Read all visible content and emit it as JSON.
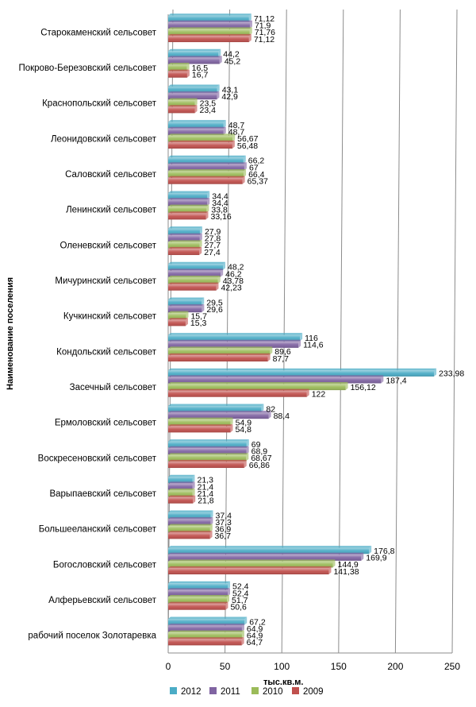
{
  "chart_data": {
    "type": "bar",
    "orientation": "horizontal",
    "title": "",
    "xlabel": "тыс.кв.м.",
    "ylabel": "Наименование поселения",
    "xlim": [
      0,
      250
    ],
    "x_ticks": [
      "0",
      "50",
      "100",
      "150",
      "200",
      "250"
    ],
    "grid": "vertical",
    "legend_position": "bottom",
    "categories": [
      "Старокаменский сельсовет",
      "Покрово-Березовский сельсовет",
      "Краснопольский сельсовет",
      "Леонидовский сельсовет",
      "Саловский сельсовет",
      "Ленинский сельсовет",
      "Оленевский сельсовет",
      "Мичуринский сельсовет",
      "Кучкинский сельсовет",
      "Кондольский сельсовет",
      "Засечный сельсовет",
      "Ермоловский сельсовет",
      "Воскресеновский сельсовет",
      "Варыпаевский сельсовет",
      "Большееланский сельсовет",
      "Богословский сельсовет",
      "Алферьевский сельсовет",
      "рабочий поселок Золотаревка"
    ],
    "series": [
      {
        "name": "2012",
        "color": "#4bacc6",
        "values": [
          71.12,
          44.2,
          43.1,
          48.7,
          66.2,
          34.4,
          27.9,
          48.2,
          29.5,
          116,
          233.98,
          82,
          69,
          21.3,
          37.4,
          176.8,
          52.4,
          67.2
        ],
        "labels": [
          "71,12",
          "44,2",
          "43,1",
          "48,7",
          "66,2",
          "34,4",
          "27,9",
          "48,2",
          "29,5",
          "116",
          "233,98",
          "82",
          "69",
          "21,3",
          "37,4",
          "176,8",
          "52,4",
          "67,2"
        ]
      },
      {
        "name": "2011",
        "color": "#8064a2",
        "values": [
          71.9,
          45.2,
          42.9,
          48.7,
          67,
          34.4,
          27.8,
          46.2,
          29.6,
          114.6,
          187.4,
          88.4,
          68.9,
          21.4,
          37.3,
          169.9,
          52.4,
          64.9
        ],
        "labels": [
          "71,9",
          "45,2",
          "42,9",
          "48,7",
          "67",
          "34,4",
          "27,8",
          "46,2",
          "29,6",
          "114,6",
          "187,4",
          "88,4",
          "68,9",
          "21,4",
          "37,3",
          "169,9",
          "52,4",
          "64,9"
        ]
      },
      {
        "name": "2010",
        "color": "#9bbb59",
        "values": [
          71.76,
          16.5,
          23.5,
          56.67,
          66.4,
          33.8,
          27.7,
          43.78,
          15.7,
          89.6,
          156.12,
          54.9,
          68.67,
          21.4,
          36.9,
          144.9,
          51.7,
          64.9
        ],
        "labels": [
          "71,76",
          "16,5",
          "23,5",
          "56,67",
          "66,4",
          "33,8",
          "27,7",
          "43,78",
          "15,7",
          "89,6",
          "156,12",
          "54,9",
          "68,67",
          "21,4",
          "36,9",
          "144,9",
          "51,7",
          "64,9"
        ]
      },
      {
        "name": "2009",
        "color": "#c0504d",
        "values": [
          71.12,
          16.7,
          23.4,
          56.48,
          65.37,
          33.16,
          27.4,
          42.23,
          15.3,
          87.7,
          122,
          54.8,
          66.86,
          21.8,
          36.7,
          141.38,
          50.6,
          64.7
        ],
        "labels": [
          "71,12",
          "16,7",
          "23,4",
          "56,48",
          "65,37",
          "33,16",
          "27,4",
          "42,23",
          "15,3",
          "87,7",
          "122",
          "54,8",
          "66,86",
          "21,8",
          "36,7",
          "141,38",
          "50,6",
          "64,7"
        ]
      }
    ]
  }
}
